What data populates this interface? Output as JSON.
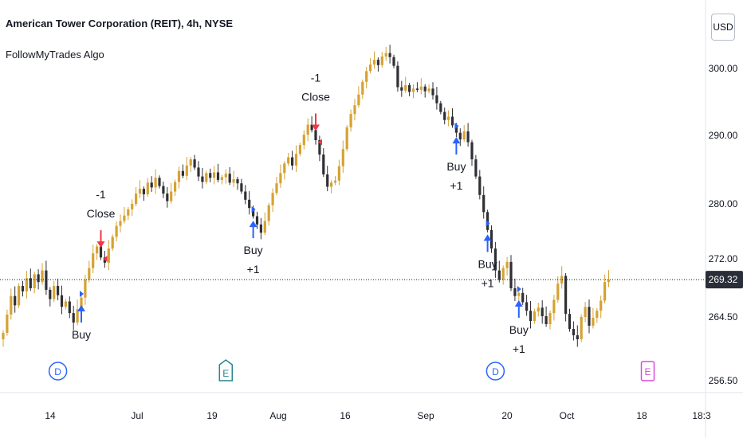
{
  "header": {
    "title": "American Tower Corporation (REIT), 4h, NYSE",
    "indicator": "FollowMyTrades Algo",
    "currency": "USD"
  },
  "colors": {
    "bull": "#d5a233",
    "bear": "#2f2f35",
    "buy_arrow": "#2962ff",
    "sell_arrow": "#f23645",
    "dividend": "#2962ff",
    "earnings_past": "#26848f",
    "earnings_future": "#d94ad8",
    "last_price_bg": "#2a2e39"
  },
  "chart_data": {
    "type": "candlestick",
    "title": "American Tower Corporation (REIT), 4h, NYSE",
    "ylabels": [
      "300.00",
      "290.00",
      "280.00",
      "272.00",
      "264.50",
      "256.50"
    ],
    "yticks": [
      300,
      290,
      280,
      272,
      264.5,
      256.5
    ],
    "xlabels": [
      "14",
      "Jul",
      "19",
      "Aug",
      "16",
      "Sep",
      "20",
      "Oct",
      "18",
      "18:3"
    ],
    "last_price": "269.32",
    "last_price_value": 269.32,
    "closes": [
      262.5,
      264.8,
      267.2,
      266.0,
      268.5,
      267.8,
      269.5,
      268.2,
      270.0,
      269.0,
      270.5,
      268.0,
      266.8,
      268.5,
      267.3,
      265.8,
      266.5,
      265.0,
      263.8,
      265.5,
      267.0,
      269.3,
      270.8,
      272.8,
      273.8,
      272.2,
      271.5,
      273.5,
      275.2,
      276.8,
      277.5,
      278.3,
      279.2,
      280.0,
      281.5,
      282.2,
      281.4,
      283.1,
      282.4,
      283.8,
      282.6,
      281.5,
      280.4,
      281.8,
      283.2,
      284.8,
      284.1,
      285.6,
      286.5,
      285.3,
      284.0,
      283.2,
      284.5,
      283.8,
      284.6,
      283.5,
      283.9,
      284.4,
      283.1,
      283.6,
      283.0,
      281.8,
      280.6,
      279.4,
      278.2,
      277.0,
      275.8,
      277.5,
      279.8,
      281.6,
      283.0,
      284.5,
      285.9,
      286.8,
      285.6,
      287.3,
      288.6,
      290.1,
      291.6,
      290.8,
      289.3,
      287.2,
      284.3,
      282.5,
      283.1,
      283.4,
      285.5,
      288.0,
      291.2,
      293.2,
      294.5,
      296.1,
      298.0,
      299.6,
      300.6,
      301.3,
      300.5,
      301.8,
      302.3,
      301.7,
      300.4,
      297.2,
      296.7,
      297.5,
      296.5,
      297.0,
      296.8,
      297.3,
      296.6,
      297.0,
      296.0,
      294.8,
      293.5,
      292.3,
      292.8,
      291.5,
      290.4,
      289.4,
      290.6,
      289.0,
      286.5,
      284.0,
      281.3,
      278.8,
      276.2,
      273.5,
      270.5,
      269.3,
      270.8,
      271.6,
      268.2,
      267.2,
      267.6,
      266.4,
      265.3,
      264.0,
      265.2,
      265.7,
      264.6,
      263.6,
      265.0,
      266.7,
      268.8,
      269.8,
      264.9,
      263.0,
      262.2,
      261.7,
      264.5,
      265.8,
      263.4,
      264.4,
      265.3,
      266.6,
      269.0,
      269.3
    ],
    "signals": [
      {
        "kind": "buy",
        "label": "Buy",
        "bar": 20
      },
      {
        "kind": "close",
        "label": "Close",
        "qty": "-1",
        "bar": 25
      },
      {
        "kind": "buy",
        "label": "Buy",
        "qty": "+1",
        "bar": 64
      },
      {
        "kind": "close",
        "label": "Close",
        "qty": "-1",
        "bar": 80
      },
      {
        "kind": "buy",
        "label": "Buy",
        "qty": "+1",
        "bar": 116
      },
      {
        "kind": "buy",
        "label": "Buy",
        "qty": "+1",
        "bar": 124
      },
      {
        "kind": "buy",
        "label": "Buy",
        "qty": "+1",
        "bar": 132
      }
    ],
    "events": [
      {
        "kind": "dividend",
        "label": "D",
        "bar": 14
      },
      {
        "kind": "earnings",
        "label": "E",
        "bar": 57
      },
      {
        "kind": "dividend",
        "label": "D",
        "bar": 126
      },
      {
        "kind": "earnings_upcoming",
        "label": "E",
        "bar": 165
      }
    ]
  }
}
